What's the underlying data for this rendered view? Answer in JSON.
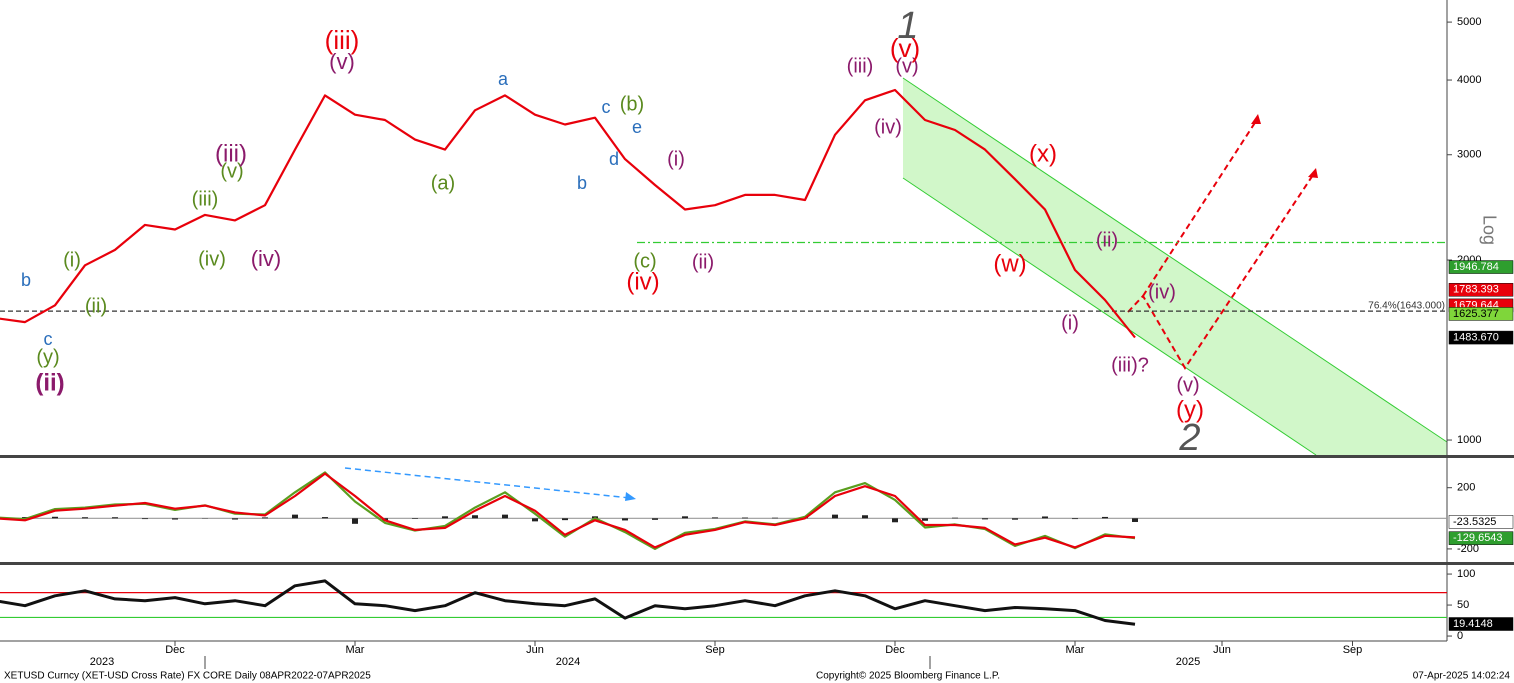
{
  "chart_data": [
    {
      "type": "line",
      "log_scale": true,
      "axis_label": "Log",
      "categories": [
        null,
        null,
        null,
        null,
        null,
        null,
        "Dec",
        null,
        null,
        null,
        null,
        null,
        "Mar",
        null,
        null,
        null,
        null,
        null,
        "Jun",
        null,
        null,
        null,
        null,
        null,
        "Sep",
        null,
        null,
        null,
        null,
        null,
        "Dec",
        null,
        null,
        null,
        null,
        null,
        "Mar",
        null,
        null,
        null,
        null,
        null,
        "Jun",
        null,
        null,
        null,
        null,
        null,
        "Sep"
      ],
      "x_years": [
        "2023",
        "2024",
        "2025"
      ],
      "series": [
        {
          "color": "#e8000b",
          "values": [
            1600,
            1575,
            1680,
            1960,
            2080,
            2290,
            2250,
            2380,
            2330,
            2470,
            3060,
            3770,
            3500,
            3430,
            3180,
            3060,
            3560,
            3770,
            3500,
            3370,
            3460,
            2950,
            2670,
            2430,
            2470,
            2570,
            2570,
            2520,
            3240,
            3700,
            3850,
            3430,
            3300,
            3060,
            2730,
            2430,
            1925,
            1715,
            1484,
            null,
            null,
            null,
            null,
            null,
            null,
            null,
            null,
            null,
            null
          ]
        }
      ],
      "ylim": [
        944,
        5444
      ],
      "yticks": [
        1000,
        2000,
        3000,
        4000,
        5000
      ],
      "levels": [
        {
          "value": 1643,
          "color": "#333333",
          "dash": "5,3"
        },
        {
          "value": 2140,
          "color": "#33cc33",
          "dash": "8,3,2,3"
        }
      ],
      "level_label": "76.4%(1643.000)",
      "price_tags": [
        {
          "value": 1946.784,
          "label": "1946.784",
          "color": "#2e9e2e"
        },
        {
          "value": 1783.393,
          "label": "1783.393",
          "color": "#e8000b"
        },
        {
          "value": 1679.644,
          "label": "1679.644",
          "color": "#e8000b"
        },
        {
          "value": 1625.377,
          "label": "1625.377",
          "color": "#7fd63a"
        },
        {
          "value": 1483.67,
          "label": "1483.670",
          "color": "#000000"
        }
      ],
      "annotations": [
        {
          "text": "b",
          "color": "#2a6ebb"
        },
        {
          "text": "c",
          "color": "#2a6ebb"
        },
        {
          "text": "(y)",
          "color": "#5a8a1e"
        },
        {
          "text": "(ii)",
          "color": "#8b1a6b"
        },
        {
          "text": "(i)",
          "color": "#5a8a1e"
        },
        {
          "text": "(ii)",
          "color": "#5a8a1e"
        },
        {
          "text": "(iii)",
          "color": "#5a8a1e"
        },
        {
          "text": "(v)",
          "color": "#5a8a1e"
        },
        {
          "text": "(iii)",
          "color": "#8b1a6b"
        },
        {
          "text": "(iv)",
          "color": "#5a8a1e"
        },
        {
          "text": "(iv)",
          "color": "#8b1a6b"
        },
        {
          "text": "(iii)",
          "color": "#e8000b"
        },
        {
          "text": "(v)",
          "color": "#8b1a6b"
        },
        {
          "text": "(a)",
          "color": "#5a8a1e"
        },
        {
          "text": "a",
          "color": "#2a6ebb"
        },
        {
          "text": "b",
          "color": "#2a6ebb"
        },
        {
          "text": "c",
          "color": "#2a6ebb"
        },
        {
          "text": "(b)",
          "color": "#5a8a1e"
        },
        {
          "text": "e",
          "color": "#2a6ebb"
        },
        {
          "text": "d",
          "color": "#2a6ebb"
        },
        {
          "text": "(i)",
          "color": "#8b1a6b"
        },
        {
          "text": "(ii)",
          "color": "#8b1a6b"
        },
        {
          "text": "(c)",
          "color": "#5a8a1e"
        },
        {
          "text": "(iv)",
          "color": "#e8000b"
        },
        {
          "text": "(iii)",
          "color": "#8b1a6b"
        },
        {
          "text": "(v)",
          "color": "#8b1a6b"
        },
        {
          "text": "(v)",
          "color": "#e8000b"
        },
        {
          "text": "1",
          "color": "#555555"
        },
        {
          "text": "(iv)",
          "color": "#8b1a6b"
        },
        {
          "text": "(x)",
          "color": "#e8000b"
        },
        {
          "text": "(w)",
          "color": "#e8000b"
        },
        {
          "text": "(ii)",
          "color": "#8b1a6b"
        },
        {
          "text": "(iv)",
          "color": "#8b1a6b"
        },
        {
          "text": "(i)",
          "color": "#8b1a6b"
        },
        {
          "text": "(iii)?",
          "color": "#8b1a6b"
        },
        {
          "text": "(v)",
          "color": "#8b1a6b"
        },
        {
          "text": "(y)",
          "color": "#e8000b"
        },
        {
          "text": "2",
          "color": "#555555"
        }
      ]
    },
    {
      "type": "line",
      "series": [
        {
          "kind": "bar",
          "color": "#222222",
          "values": [
            5,
            8,
            10,
            7,
            7,
            -5,
            -8,
            2,
            -8,
            6,
            24,
            8,
            -36,
            -17,
            -4,
            13,
            20,
            24,
            -20,
            -12,
            13,
            -14,
            -10,
            13,
            6,
            5,
            4,
            10,
            24,
            20,
            -26,
            -16,
            4,
            -7,
            -9,
            12,
            -5,
            9,
            -24,
            null,
            null,
            null,
            null,
            null,
            null,
            null,
            null,
            null,
            null
          ]
        },
        {
          "color": "#5a9e1e",
          "values": [
            5,
            -5,
            60,
            70,
            90,
            95,
            55,
            85,
            30,
            25,
            170,
            300,
            110,
            -30,
            -80,
            -50,
            70,
            170,
            30,
            -120,
            0,
            -90,
            -200,
            -95,
            -70,
            -20,
            -40,
            10,
            170,
            230,
            120,
            -60,
            -40,
            -70,
            -180,
            -115,
            -195,
            -105,
            -130,
            null,
            null,
            null,
            null,
            null,
            null,
            null,
            null,
            null,
            null
          ]
        },
        {
          "color": "#e8000b",
          "values": [
            0,
            -13,
            50,
            63,
            83,
            100,
            63,
            83,
            38,
            19,
            146,
            292,
            146,
            -13,
            -76,
            -63,
            50,
            146,
            50,
            -108,
            -13,
            -76,
            -190,
            -108,
            -76,
            -25,
            -44,
            0,
            146,
            210,
            146,
            -44,
            -44,
            -63,
            -171,
            -127,
            -190,
            -114,
            -125,
            null,
            null,
            null,
            null,
            null,
            null,
            null,
            null,
            null,
            null
          ]
        }
      ],
      "ylim": [
        -279,
        381
      ],
      "yticks": [
        -200,
        200
      ],
      "levels": [
        {
          "value": 0,
          "color": "#999999"
        }
      ],
      "price_tags": [
        {
          "value": -23.5325,
          "label": "-23.5325",
          "color": "#ffffff"
        },
        {
          "value": -129.6543,
          "label": "-129.6543",
          "color": "#2e9e2e"
        }
      ]
    },
    {
      "type": "line",
      "series": [
        {
          "color": "#111111",
          "values": [
            57,
            49,
            65,
            73,
            60,
            57,
            62,
            52,
            57,
            49,
            81,
            89,
            52,
            49,
            41,
            49,
            70,
            57,
            52,
            49,
            60,
            29,
            49,
            44,
            49,
            57,
            49,
            65,
            73,
            65,
            44,
            57,
            49,
            41,
            46,
            44,
            41,
            25,
            19,
            null,
            null,
            null,
            null,
            null,
            null,
            null,
            null,
            null,
            null
          ]
        }
      ],
      "ylim": [
        -8,
        113
      ],
      "yticks": [
        0,
        50,
        100
      ],
      "levels": [
        {
          "value": 70,
          "color": "#e8000b"
        },
        {
          "value": 30,
          "color": "#33cc33"
        }
      ],
      "price_tags": [
        {
          "value": 19.4148,
          "label": "19.4148",
          "color": "#000000"
        }
      ]
    }
  ],
  "footer": {
    "source": "XETUSD Curncy (XET-USD Cross Rate) FX CORE  Daily 08APR2022-07APR2025",
    "copyright": "Copyright© 2025 Bloomberg Finance L.P.",
    "timestamp": "07-Apr-2025 14:02:24"
  }
}
